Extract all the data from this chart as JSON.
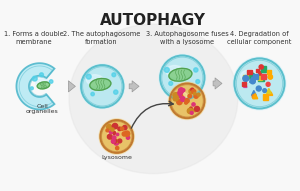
{
  "title": "AUTOPHAGY",
  "title_fontsize": 11,
  "title_fontweight": "bold",
  "background_color": "#f8f8f8",
  "labels": [
    "1. Forms a double\nmembrane",
    "2. The autophagosome\nformation",
    "3. Autophagosome fuses\nwith a lysosome",
    "4. Degradation of\ncellular component"
  ],
  "sub_labels": [
    "Cell\norganelles",
    "Lysosome"
  ],
  "label_fontsize": 4.8,
  "sub_label_fontsize": 4.5,
  "watermark_color": "#e0e0e0",
  "teal_outer": "#5bbfcc",
  "teal_inner": "#b8e8f0",
  "teal_mid": "#80d0e0",
  "lyso_outer": "#c07830",
  "lyso_inner": "#dda840",
  "lyso_fill": "#e8c060",
  "mito_body": "#80cc80",
  "mito_border": "#50a050",
  "crescent_fill": "#a0e0ee",
  "crescent_border": "#50b8cc",
  "glow_color": "#40d8f0",
  "arrow_gray": "#b0b0b0",
  "arrow_black": "#555555",
  "dot_colors": [
    "#dd3333",
    "#ee8822",
    "#ddcc22",
    "#22aa66",
    "#4488cc",
    "#cc44aa",
    "#ee4444",
    "#ffaa00"
  ],
  "lyso_dot_colors": [
    "#cc3333",
    "#dd6622",
    "#cc8822",
    "#dd3377"
  ]
}
